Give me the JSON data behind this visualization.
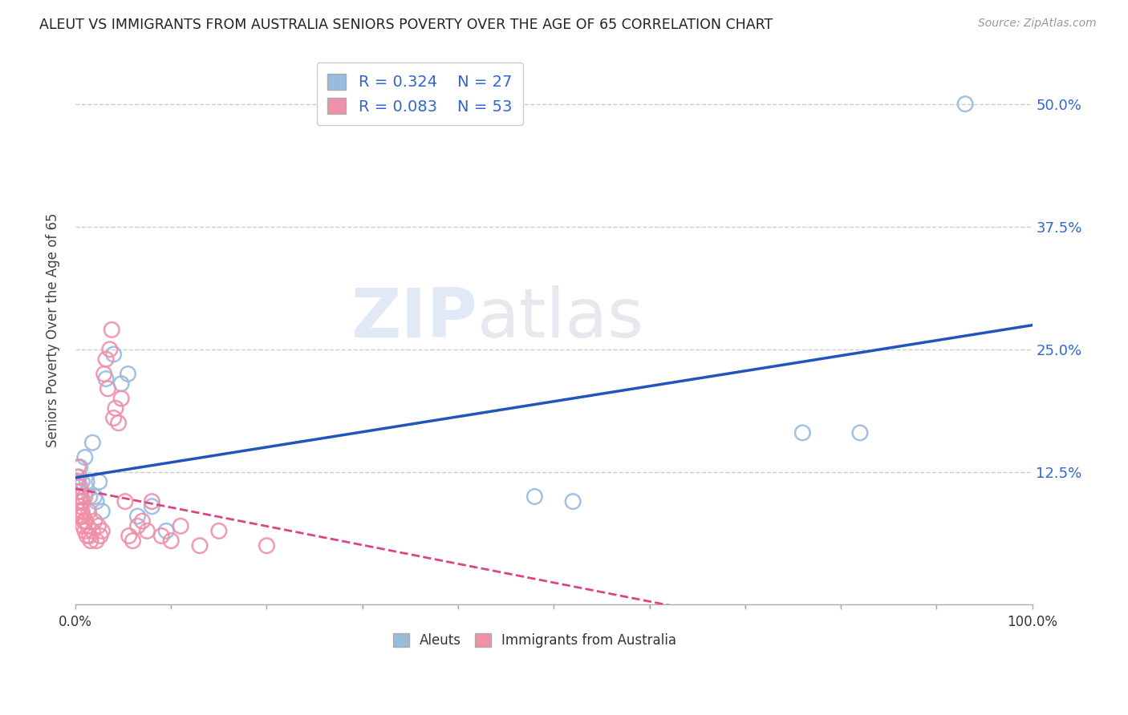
{
  "title": "ALEUT VS IMMIGRANTS FROM AUSTRALIA SENIORS POVERTY OVER THE AGE OF 65 CORRELATION CHART",
  "source": "Source: ZipAtlas.com",
  "ylabel": "Seniors Poverty Over the Age of 65",
  "watermark_zip": "ZIP",
  "watermark_atlas": "atlas",
  "aleuts_R": 0.324,
  "aleuts_N": 27,
  "immigrants_R": 0.083,
  "immigrants_N": 53,
  "aleuts_color": "#99bbdd",
  "immigrants_color": "#f090a8",
  "trendline_aleuts_color": "#2255bb",
  "trendline_immigrants_color": "#dd4488",
  "background_color": "#ffffff",
  "grid_color": "#cccccc",
  "xlim": [
    0,
    1.0
  ],
  "ylim": [
    -0.01,
    0.55
  ],
  "xtick_positions": [
    0.0,
    1.0
  ],
  "xtick_labels": [
    "0.0%",
    "100.0%"
  ],
  "ytick_positions": [
    0.125,
    0.25,
    0.375,
    0.5
  ],
  "ytick_labels": [
    "12.5%",
    "25.0%",
    "37.5%",
    "50.0%"
  ],
  "aleuts_x": [
    0.002,
    0.003,
    0.004,
    0.005,
    0.006,
    0.007,
    0.008,
    0.01,
    0.012,
    0.015,
    0.018,
    0.02,
    0.022,
    0.025,
    0.028,
    0.032,
    0.04,
    0.048,
    0.055,
    0.065,
    0.08,
    0.095,
    0.48,
    0.52,
    0.76,
    0.82,
    0.93
  ],
  "aleuts_y": [
    0.115,
    0.11,
    0.12,
    0.13,
    0.105,
    0.115,
    0.095,
    0.14,
    0.115,
    0.1,
    0.155,
    0.1,
    0.095,
    0.115,
    0.085,
    0.22,
    0.245,
    0.215,
    0.225,
    0.08,
    0.09,
    0.065,
    0.1,
    0.095,
    0.165,
    0.165,
    0.5
  ],
  "immigrants_x": [
    0.002,
    0.002,
    0.003,
    0.003,
    0.004,
    0.004,
    0.005,
    0.005,
    0.005,
    0.006,
    0.006,
    0.006,
    0.007,
    0.007,
    0.008,
    0.008,
    0.009,
    0.01,
    0.01,
    0.011,
    0.012,
    0.013,
    0.014,
    0.015,
    0.016,
    0.018,
    0.02,
    0.022,
    0.024,
    0.026,
    0.028,
    0.03,
    0.032,
    0.034,
    0.036,
    0.038,
    0.04,
    0.042,
    0.045,
    0.048,
    0.052,
    0.056,
    0.06,
    0.065,
    0.07,
    0.075,
    0.08,
    0.09,
    0.1,
    0.11,
    0.13,
    0.15,
    0.2
  ],
  "immigrants_y": [
    0.1,
    0.12,
    0.085,
    0.13,
    0.105,
    0.08,
    0.1,
    0.09,
    0.11,
    0.095,
    0.08,
    0.1,
    0.085,
    0.095,
    0.07,
    0.08,
    0.075,
    0.065,
    0.1,
    0.075,
    0.06,
    0.07,
    0.085,
    0.06,
    0.055,
    0.065,
    0.075,
    0.055,
    0.07,
    0.06,
    0.065,
    0.225,
    0.24,
    0.21,
    0.25,
    0.27,
    0.18,
    0.19,
    0.175,
    0.2,
    0.095,
    0.06,
    0.055,
    0.07,
    0.075,
    0.065,
    0.095,
    0.06,
    0.055,
    0.07,
    0.05,
    0.065,
    0.05
  ]
}
